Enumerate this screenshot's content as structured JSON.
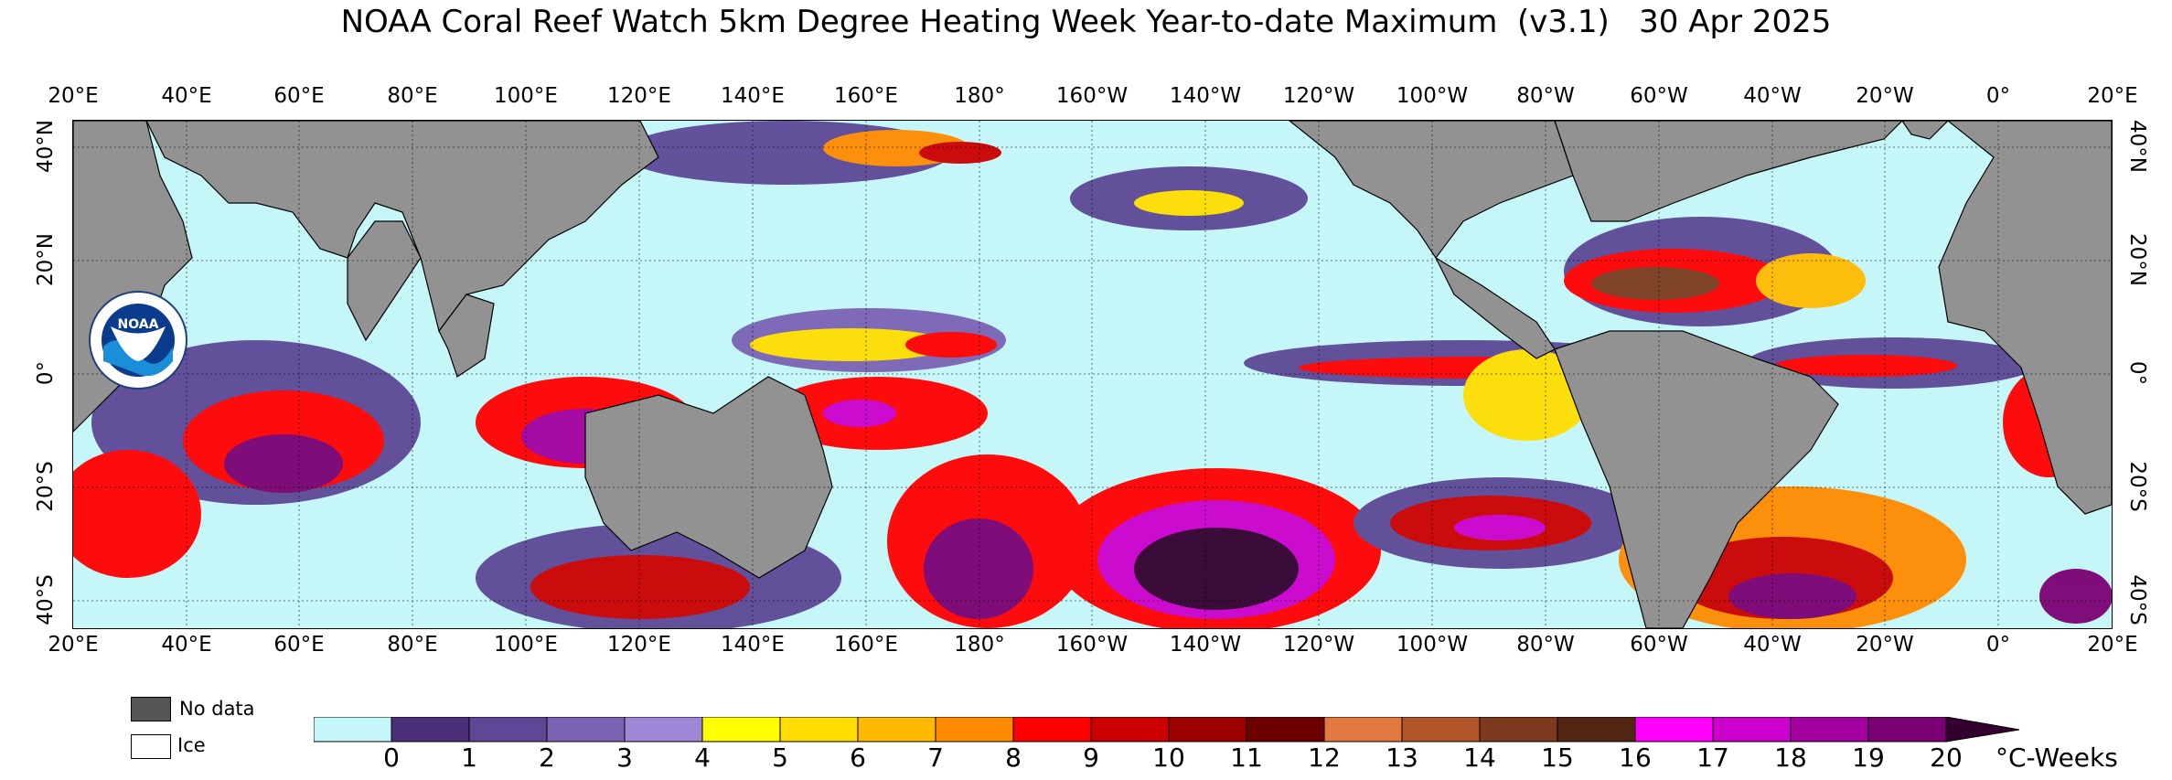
{
  "title": "NOAA Coral Reef Watch 5km Degree Heating Week Year-to-date Maximum  (v3.1)   30 Apr 2025",
  "lon_labels": [
    "20°E",
    "40°E",
    "60°E",
    "80°E",
    "100°E",
    "120°E",
    "140°E",
    "160°E",
    "180°",
    "160°W",
    "140°W",
    "120°W",
    "100°W",
    "80°W",
    "60°W",
    "40°W",
    "20°W",
    "0°",
    "20°E"
  ],
  "lat_labels_left": [
    "40°N",
    "20°N",
    "0°",
    "20°S",
    "40°S"
  ],
  "lat_labels_right": [
    "40°N",
    "20°N",
    "0°",
    "20°S",
    "40°S"
  ],
  "logo_text": "NOAA",
  "logo_ring_text": "NATIONAL OCEANIC AND ATMOSPHERIC ADMINISTRATION · U.S. DEPARTMENT OF COMMERCE",
  "legend": {
    "no_data_label": "No data",
    "ice_label": "Ice",
    "no_data_color": "#555555",
    "ice_color": "#ffffff"
  },
  "colorbar": {
    "ticks": [
      "0",
      "1",
      "2",
      "3",
      "4",
      "5",
      "6",
      "7",
      "8",
      "9",
      "10",
      "11",
      "12",
      "13",
      "14",
      "15",
      "16",
      "17",
      "18",
      "19",
      "20"
    ],
    "units": "°C-Weeks",
    "colors": [
      "#c6f7f8",
      "#4b2f78",
      "#5e4896",
      "#7b63b4",
      "#9e88d6",
      "#ffff00",
      "#ffdd00",
      "#ffba00",
      "#ff8a00",
      "#ff0000",
      "#cc0000",
      "#9d0000",
      "#6c0000",
      "#e07840",
      "#b0552a",
      "#7c3a1e",
      "#522612",
      "#ff00ff",
      "#cc00cc",
      "#a3009f",
      "#7b0073",
      "#34002f"
    ]
  },
  "map_colors": {
    "ocean": "#c6f7f8",
    "land": "#929292",
    "grid": "#000000"
  }
}
